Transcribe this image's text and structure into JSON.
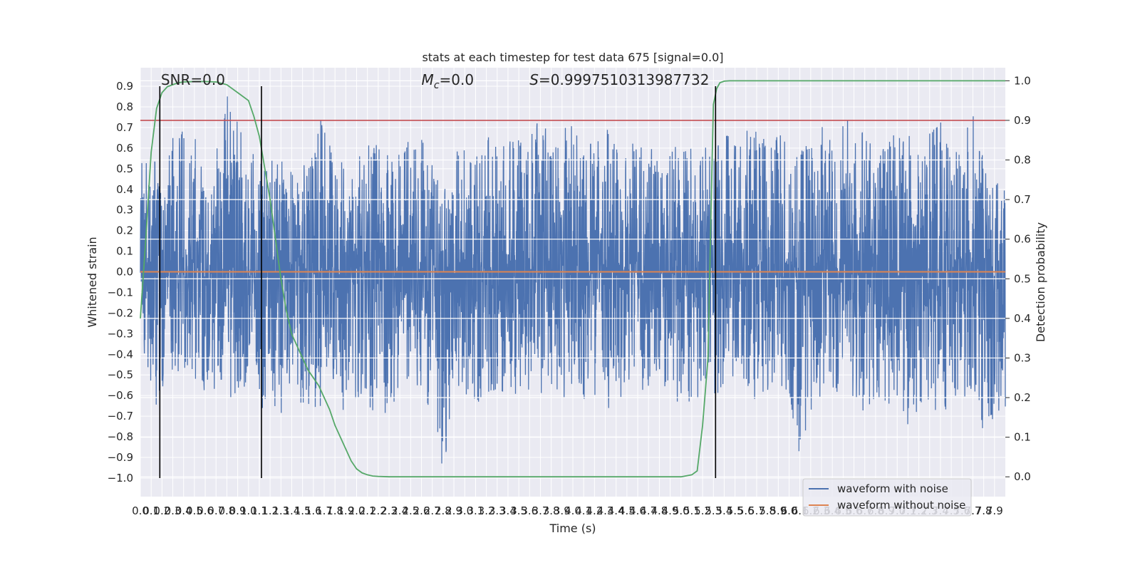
{
  "chart_data": {
    "type": "line",
    "title": "stats at each timestep for test data 675 [signal=0.0]",
    "xlabel": "Time (s)",
    "ylabel": "Whitened strain",
    "y2label": "Detection probability",
    "xlim": [
      0.0,
      8.0
    ],
    "ylim": [
      -1.09,
      0.99
    ],
    "y2lim": [
      -0.05,
      1.033
    ],
    "x_ticks": [
      0.0,
      0.1,
      0.2,
      0.3,
      0.4,
      0.5,
      0.6,
      0.7,
      0.8,
      0.9,
      1.0,
      1.1,
      1.2,
      1.3,
      1.4,
      1.5,
      1.6,
      1.7,
      1.8,
      1.9,
      2.0,
      2.1,
      2.2,
      2.3,
      2.4,
      2.5,
      2.6,
      2.7,
      2.8,
      2.9,
      3.0,
      3.1,
      3.2,
      3.3,
      3.4,
      3.5,
      3.6,
      3.7,
      3.8,
      3.9,
      4.0,
      4.1,
      4.2,
      4.3,
      4.4,
      4.5,
      4.6,
      4.7,
      4.8,
      4.9,
      5.0,
      5.1,
      5.2,
      5.3,
      5.4,
      5.5,
      5.6,
      5.7,
      5.8,
      5.9,
      6.0,
      6.1,
      6.2,
      6.3,
      6.4,
      6.5,
      6.6,
      6.7,
      6.8,
      6.9,
      7.0,
      7.1,
      7.2,
      7.3,
      7.4,
      7.5,
      7.6,
      7.7,
      7.8,
      7.9
    ],
    "x_tick_labels": [
      "0.0",
      "0.1",
      "0.2",
      "0.3",
      "0.4",
      "0.5",
      "0.6",
      "0.7",
      "0.8",
      "0.9",
      "1.0",
      "1.1",
      "1.2",
      "1.3",
      "1.4",
      "1.5",
      "1.6",
      "1.7",
      "1.8",
      "1.9",
      "2.0",
      "2.1",
      "2.2",
      "2.3",
      "2.4",
      "2.5",
      "2.6",
      "2.7",
      "2.8",
      "2.9",
      "3.0",
      "3.1",
      "3.2",
      "3.3",
      "3.4",
      "3.5",
      "3.6",
      "3.7",
      "3.8",
      "3.9",
      "4.0",
      "4.1",
      "4.2",
      "4.3",
      "4.4",
      "4.5",
      "4.6",
      "4.7",
      "4.8",
      "4.9",
      "5.0",
      "5.1",
      "5.2",
      "5.3",
      "5.4",
      "5.5",
      "5.6",
      "5.7",
      "5.8",
      "5.9",
      "6.0",
      "6.1",
      "6.2",
      "6.3",
      "6.4",
      "6.5",
      "6.6",
      "6.7",
      "6.8",
      "6.9",
      "7.0",
      "7.1",
      "7.2",
      "7.3",
      "7.4",
      "7.5",
      "7.6",
      "7.7",
      "7.8",
      "7.9"
    ],
    "y_ticks": [
      -1.0,
      -0.9,
      -0.8,
      -0.7,
      -0.6,
      -0.5,
      -0.4,
      -0.3,
      -0.2,
      -0.1,
      0.0,
      0.1,
      0.2,
      0.3,
      0.4,
      0.5,
      0.6,
      0.7,
      0.8,
      0.9
    ],
    "y_tick_labels": [
      "−1.0",
      "−0.9",
      "−0.8",
      "−0.7",
      "−0.6",
      "−0.5",
      "−0.4",
      "−0.3",
      "−0.2",
      "−0.1",
      "0.0",
      "0.1",
      "0.2",
      "0.3",
      "0.4",
      "0.5",
      "0.6",
      "0.7",
      "0.8",
      "0.9"
    ],
    "y2_ticks": [
      0.0,
      0.1,
      0.2,
      0.3,
      0.4,
      0.5,
      0.6,
      0.7,
      0.8,
      0.9,
      1.0
    ],
    "y2_tick_labels": [
      "0.0",
      "0.1",
      "0.2",
      "0.3",
      "0.4",
      "0.5",
      "0.6",
      "0.7",
      "0.8",
      "0.9",
      "1.0"
    ],
    "grid": true,
    "background": "#eaeaf2",
    "series": [
      {
        "name": "waveform with noise",
        "axis": "left",
        "color": "#4c72b0",
        "envelope_x": [
          0.0,
          0.05,
          0.1,
          0.15,
          0.2,
          0.25,
          0.3,
          0.35,
          0.4,
          0.45,
          0.5,
          0.55,
          0.6,
          0.65,
          0.7,
          0.75,
          0.8,
          0.85,
          0.9,
          0.95,
          1.0,
          1.05,
          1.1,
          1.15,
          1.2,
          1.3,
          1.4,
          1.5,
          1.6,
          1.7,
          1.8,
          1.9,
          2.0,
          2.1,
          2.2,
          2.3,
          2.4,
          2.5,
          2.6,
          2.7,
          2.8,
          2.9,
          3.0,
          3.1,
          3.2,
          3.3,
          3.4,
          3.5,
          3.6,
          3.7,
          3.8,
          3.9,
          4.0,
          4.1,
          4.2,
          4.3,
          4.4,
          4.5,
          4.6,
          4.7,
          4.8,
          4.9,
          5.0,
          5.1,
          5.2,
          5.3,
          5.4,
          5.5,
          5.6,
          5.7,
          5.8,
          5.9,
          6.0,
          6.1,
          6.2,
          6.3,
          6.4,
          6.5,
          6.6,
          6.7,
          6.8,
          6.9,
          7.0,
          7.1,
          7.2,
          7.3,
          7.4,
          7.5,
          7.6,
          7.7,
          7.8,
          7.9,
          8.0
        ],
        "envelope_max": [
          0.57,
          0.54,
          0.47,
          0.6,
          0.47,
          0.51,
          0.7,
          0.62,
          0.77,
          0.54,
          0.77,
          0.55,
          0.51,
          0.53,
          0.65,
          0.58,
          0.89,
          0.74,
          0.77,
          0.68,
          0.58,
          0.6,
          0.55,
          0.57,
          0.54,
          0.58,
          0.62,
          0.51,
          0.62,
          0.81,
          0.59,
          0.65,
          0.57,
          0.62,
          0.62,
          0.58,
          0.61,
          0.64,
          0.71,
          0.56,
          0.57,
          0.59,
          0.71,
          0.63,
          0.68,
          0.6,
          0.63,
          0.74,
          0.66,
          0.76,
          0.64,
          0.71,
          0.71,
          0.62,
          0.66,
          0.73,
          0.61,
          0.66,
          0.62,
          0.69,
          0.69,
          0.63,
          0.58,
          0.62,
          0.62,
          0.66,
          0.71,
          0.62,
          0.7,
          0.68,
          0.64,
          0.7,
          0.71,
          0.59,
          0.66,
          0.72,
          0.63,
          0.74,
          0.74,
          0.7,
          0.59,
          0.66,
          0.68,
          0.68,
          0.64,
          0.69,
          0.74,
          0.57,
          0.64,
          0.79,
          0.57,
          0.47,
          0.43
        ],
        "envelope_min": [
          -0.48,
          -0.4,
          -0.62,
          -0.66,
          -0.63,
          -0.48,
          -0.51,
          -0.51,
          -0.49,
          -0.49,
          -0.57,
          -0.6,
          -0.62,
          -0.6,
          -0.56,
          -0.53,
          -0.48,
          -0.66,
          -0.55,
          -0.64,
          -0.5,
          -0.47,
          -0.57,
          -0.77,
          -0.6,
          -0.72,
          -0.6,
          -0.65,
          -0.72,
          -0.69,
          -0.61,
          -0.73,
          -0.7,
          -0.62,
          -0.78,
          -0.64,
          -0.71,
          -0.53,
          -0.64,
          -0.65,
          -1.0,
          -0.55,
          -0.61,
          -0.66,
          -0.59,
          -0.62,
          -0.56,
          -0.61,
          -0.58,
          -0.6,
          -0.55,
          -0.66,
          -0.59,
          -0.65,
          -0.6,
          -0.68,
          -0.64,
          -0.6,
          -0.59,
          -0.58,
          -0.65,
          -0.56,
          -0.68,
          -0.64,
          -0.6,
          -0.62,
          -0.59,
          -0.61,
          -0.61,
          -0.64,
          -0.66,
          -0.59,
          -0.63,
          -0.9,
          -0.68,
          -0.62,
          -0.62,
          -0.63,
          -0.64,
          -0.69,
          -0.64,
          -0.65,
          -0.61,
          -0.75,
          -0.66,
          -0.65,
          -0.7,
          -0.64,
          -0.62,
          -0.6,
          -0.79,
          -0.7,
          -0.69
        ]
      },
      {
        "name": "waveform without noise",
        "axis": "left",
        "color": "#dd8452",
        "x": [
          0.0,
          8.0
        ],
        "y": [
          0.0,
          0.0
        ]
      },
      {
        "axis": "right",
        "color": "#55a868",
        "x": [
          0.0,
          0.05,
          0.1,
          0.15,
          0.2,
          0.25,
          0.3,
          0.35,
          0.4,
          0.5,
          0.6,
          0.7,
          0.8,
          0.9,
          1.0,
          1.05,
          1.1,
          1.15,
          1.2,
          1.25,
          1.3,
          1.35,
          1.4,
          1.45,
          1.5,
          1.55,
          1.6,
          1.65,
          1.7,
          1.75,
          1.8,
          1.85,
          1.9,
          1.95,
          2.0,
          2.05,
          2.1,
          2.15,
          2.2,
          2.3,
          2.4,
          2.6,
          3.0,
          4.0,
          5.0,
          5.1,
          5.15,
          5.2,
          5.25,
          5.28,
          5.3,
          5.33,
          5.36,
          5.4,
          5.45,
          5.5,
          5.7,
          6.0,
          7.0,
          8.0
        ],
        "y": [
          0.4,
          0.6,
          0.82,
          0.93,
          0.97,
          0.985,
          0.99,
          0.995,
          0.997,
          0.998,
          0.998,
          0.997,
          0.99,
          0.97,
          0.95,
          0.91,
          0.86,
          0.78,
          0.7,
          0.6,
          0.5,
          0.42,
          0.36,
          0.33,
          0.3,
          0.27,
          0.25,
          0.23,
          0.2,
          0.17,
          0.13,
          0.1,
          0.07,
          0.04,
          0.02,
          0.01,
          0.005,
          0.002,
          0.001,
          0.0,
          0.0,
          0.0,
          0.0,
          0.0,
          0.0,
          0.005,
          0.015,
          0.13,
          0.3,
          0.7,
          0.94,
          0.98,
          0.995,
          0.999,
          1.0,
          1.0,
          1.0,
          1.0,
          1.0,
          1.0
        ]
      }
    ],
    "hlines": [
      {
        "axis": "right",
        "y": 0.9,
        "color": "#c44e52"
      }
    ],
    "vlines": [
      {
        "x": 0.18,
        "y_from": -1.0,
        "y_to": 0.9,
        "color": "#000000"
      },
      {
        "x": 1.12,
        "y_from": -1.0,
        "y_to": 0.9,
        "color": "#000000"
      },
      {
        "x": 5.32,
        "y_from": -1.0,
        "y_to": 0.9,
        "color": "#000000"
      }
    ],
    "annotations": {
      "snr": {
        "x": 0.19,
        "y": 0.91,
        "text": "SNR=0.0"
      },
      "mc_symbol": "M",
      "mc_sub": "c",
      "mc_value": "=0.0",
      "mc_pos": {
        "x": 2.6,
        "y": 0.91
      },
      "s_symbol": "S",
      "s_value": "=0.9997510313987732",
      "s_pos": {
        "x": 3.6,
        "y": 0.91
      }
    },
    "legend": {
      "placement": "lower-right",
      "entries": [
        {
          "label": "waveform with noise",
          "color": "#4c72b0"
        },
        {
          "label": "waveform without noise",
          "color": "#dd8452"
        }
      ]
    }
  }
}
